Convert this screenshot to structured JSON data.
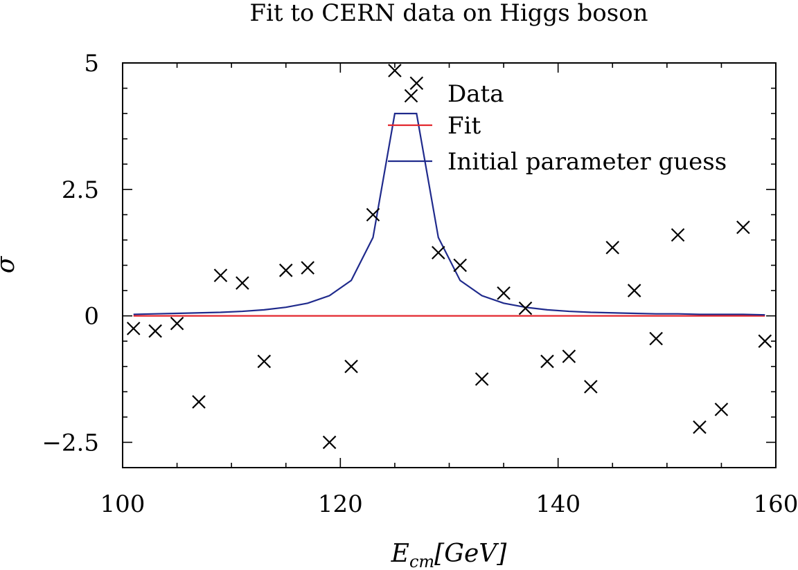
{
  "chart_data": {
    "type": "scatter",
    "title": "Fit to CERN data on Higgs boson",
    "xlabel": "E_cm[GeV]",
    "xlabel_main": "E",
    "xlabel_sub": "cm",
    "xlabel_rest": "[GeV]",
    "ylabel": "σ",
    "xlim": [
      100,
      160
    ],
    "ylim": [
      -3,
      5
    ],
    "xticks": [
      100,
      120,
      140,
      160
    ],
    "xtick_labels": [
      "100",
      "120",
      "140",
      "160"
    ],
    "yticks": [
      -2.5,
      0,
      2.5,
      5
    ],
    "ytick_labels": [
      "−2.5",
      "0",
      "2.5",
      "5"
    ],
    "grid": false,
    "legend_position": "top-center",
    "series": [
      {
        "name": "Data",
        "kind": "markers",
        "marker": "x",
        "color": "#000000",
        "x": [
          101,
          103,
          105,
          107,
          109,
          111,
          113,
          115,
          117,
          119,
          121,
          123,
          125,
          126.5,
          127,
          129,
          131,
          133,
          135,
          137,
          139,
          141,
          143,
          145,
          147,
          149,
          151,
          153,
          155,
          157,
          159
        ],
        "y": [
          -0.25,
          -0.3,
          -0.15,
          -1.7,
          0.8,
          0.65,
          -0.9,
          0.9,
          0.95,
          -2.5,
          -1.0,
          2.0,
          4.85,
          4.35,
          4.6,
          1.25,
          1.0,
          -1.25,
          0.45,
          0.15,
          -0.9,
          -0.8,
          -1.4,
          1.35,
          0.5,
          -0.45,
          1.6,
          -2.2,
          -1.85,
          1.75,
          -0.5
        ]
      },
      {
        "name": "Fit",
        "kind": "line",
        "color": "#e3262d",
        "x": [
          101,
          159
        ],
        "y": [
          0,
          0
        ]
      },
      {
        "name": "Initial parameter guess",
        "kind": "line",
        "color": "#1f2a8c",
        "x": [
          101,
          103,
          105,
          107,
          109,
          111,
          113,
          115,
          117,
          119,
          121,
          123,
          125,
          127,
          129,
          131,
          133,
          135,
          137,
          139,
          141,
          143,
          145,
          147,
          149,
          151,
          153,
          155,
          157,
          159
        ],
        "y": [
          0.03,
          0.04,
          0.05,
          0.06,
          0.07,
          0.09,
          0.12,
          0.17,
          0.25,
          0.4,
          0.7,
          1.55,
          4.0,
          4.0,
          1.55,
          0.7,
          0.4,
          0.25,
          0.17,
          0.12,
          0.09,
          0.07,
          0.06,
          0.05,
          0.04,
          0.04,
          0.03,
          0.03,
          0.03,
          0.02
        ]
      }
    ]
  }
}
